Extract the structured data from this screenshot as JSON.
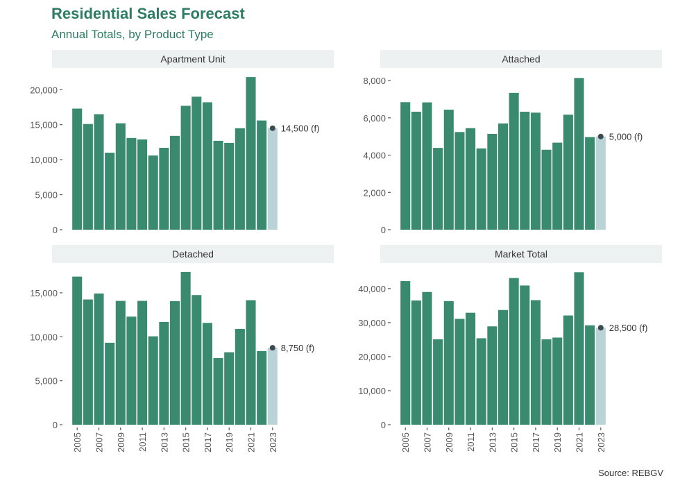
{
  "title": "Residential Sales Forecast",
  "subtitle": "Annual Totals, by Product Type",
  "caption": "Source: REBGV",
  "colors": {
    "actual": "#3a8a70",
    "forecast": "#b9d3d6",
    "strip": "#eef1f2",
    "title": "#2c7d63",
    "point": "#3d4a4f"
  },
  "chart_data": [
    {
      "type": "bar",
      "title": "Apartment Unit",
      "categories": [
        "2005",
        "2006",
        "2007",
        "2008",
        "2009",
        "2010",
        "2011",
        "2012",
        "2013",
        "2014",
        "2015",
        "2016",
        "2017",
        "2018",
        "2019",
        "2020",
        "2021",
        "2022",
        "2023"
      ],
      "values": [
        17300,
        15100,
        16500,
        11000,
        15200,
        13100,
        12900,
        10600,
        11700,
        13400,
        17700,
        19000,
        18200,
        12700,
        12400,
        14500,
        21800,
        15600,
        14500
      ],
      "forecast_index": 18,
      "annotation": "14,500 (f)",
      "yticks": [
        0,
        5000,
        10000,
        15000,
        20000
      ],
      "ytick_labels": [
        "0",
        "5,000",
        "10,000",
        "15,000",
        "20,000"
      ],
      "ylim": [
        0,
        22900
      ]
    },
    {
      "type": "bar",
      "title": "Attached",
      "categories": [
        "2005",
        "2006",
        "2007",
        "2008",
        "2009",
        "2010",
        "2011",
        "2012",
        "2013",
        "2014",
        "2015",
        "2016",
        "2017",
        "2018",
        "2019",
        "2020",
        "2021",
        "2022",
        "2023"
      ],
      "values": [
        6840,
        6330,
        6830,
        4390,
        6440,
        5240,
        5450,
        4360,
        5140,
        5700,
        7340,
        6330,
        6280,
        4290,
        4670,
        6170,
        8140,
        4970,
        5000
      ],
      "forecast_index": 18,
      "annotation": "5,000 (f)",
      "yticks": [
        0,
        2000,
        4000,
        6000,
        8000
      ],
      "ytick_labels": [
        "0",
        "2,000",
        "4,000",
        "6,000",
        "8,000"
      ],
      "ylim": [
        0,
        8600
      ]
    },
    {
      "type": "bar",
      "title": "Detached",
      "categories": [
        "2005",
        "2006",
        "2007",
        "2008",
        "2009",
        "2010",
        "2011",
        "2012",
        "2013",
        "2014",
        "2015",
        "2016",
        "2017",
        "2018",
        "2019",
        "2020",
        "2021",
        "2022",
        "2023"
      ],
      "values": [
        16840,
        14240,
        14920,
        9320,
        14080,
        12290,
        14080,
        10050,
        11680,
        14050,
        17370,
        14740,
        11580,
        7580,
        8240,
        10890,
        14160,
        8370,
        8750
      ],
      "forecast_index": 18,
      "annotation": "8,750 (f)",
      "yticks": [
        0,
        5000,
        10000,
        15000
      ],
      "ytick_labels": [
        "0",
        "5,000",
        "10,000",
        "15,000"
      ],
      "ylim": [
        0,
        18150
      ]
    },
    {
      "type": "bar",
      "title": "Market Total",
      "categories": [
        "2005",
        "2006",
        "2007",
        "2008",
        "2009",
        "2010",
        "2011",
        "2012",
        "2013",
        "2014",
        "2015",
        "2016",
        "2017",
        "2018",
        "2019",
        "2020",
        "2021",
        "2022",
        "2023"
      ],
      "values": [
        42200,
        36500,
        39000,
        25100,
        36300,
        31100,
        32900,
        25400,
        28900,
        33700,
        43100,
        40900,
        36600,
        25100,
        25600,
        32100,
        44800,
        29200,
        28500
      ],
      "forecast_index": 18,
      "annotation": "28,500 (f)",
      "yticks": [
        0,
        10000,
        20000,
        30000,
        40000
      ],
      "ytick_labels": [
        "0",
        "10,000",
        "20,000",
        "30,000",
        "40,000"
      ],
      "ylim": [
        0,
        46900
      ]
    }
  ],
  "xtick_labels": [
    "2005",
    "2007",
    "2009",
    "2011",
    "2013",
    "2015",
    "2017",
    "2019",
    "2021",
    "2023"
  ]
}
